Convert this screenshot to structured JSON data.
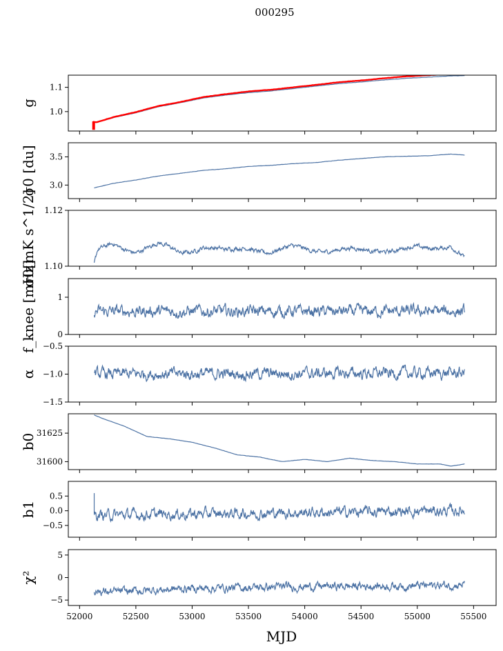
{
  "figure_title": "000295",
  "xlabel": "MJD",
  "xlim": [
    51900,
    55700
  ],
  "xticks": [
    52000,
    52500,
    53000,
    53500,
    54000,
    54500,
    55000,
    55500
  ],
  "colors": {
    "line": "#4c72a4",
    "highlight": "#ff0000",
    "axes": "#000000"
  },
  "chart_data": [
    {
      "type": "line",
      "ylabel": "g",
      "ylim": [
        0.92,
        1.15
      ],
      "yticks": [
        1.0,
        1.1
      ],
      "yticklabels": [
        "1.0",
        "1.1"
      ],
      "series": [
        {
          "style": "smooth",
          "x": [
            52120,
            52150,
            52300,
            52500,
            52700,
            52900,
            53100,
            53300,
            53500,
            53700,
            53900,
            54100,
            54300,
            54500,
            54700,
            54900,
            55100,
            55300,
            55420
          ],
          "values": [
            0.958,
            0.955,
            0.975,
            0.995,
            1.02,
            1.037,
            1.056,
            1.068,
            1.078,
            1.085,
            1.095,
            1.105,
            1.115,
            1.122,
            1.13,
            1.137,
            1.142,
            1.147,
            1.148
          ]
        },
        {
          "style": "smooth",
          "highlight": true,
          "x": [
            52120,
            52150,
            52300,
            52500,
            52700,
            52900,
            53100,
            53300,
            53500,
            53700,
            53900,
            54100,
            54300,
            54500,
            54700,
            54900,
            55100,
            55300,
            55420
          ],
          "values": [
            0.958,
            0.956,
            0.977,
            0.998,
            1.023,
            1.04,
            1.06,
            1.072,
            1.083,
            1.09,
            1.1,
            1.11,
            1.121,
            1.128,
            1.137,
            1.145,
            1.15,
            1.155,
            1.152
          ]
        }
      ],
      "spike": {
        "x": 52125,
        "values": [
          0.925,
          0.96
        ]
      }
    },
    {
      "type": "line",
      "ylabel": "σ0 [du]",
      "ylim": [
        2.76,
        3.75
      ],
      "yticks": [
        3.0,
        3.5
      ],
      "yticklabels": [
        "3.0",
        "3.5"
      ],
      "series": [
        {
          "style": "smooth",
          "x": [
            52130,
            52300,
            52500,
            52700,
            52900,
            53100,
            53300,
            53500,
            53700,
            53900,
            54100,
            54300,
            54500,
            54700,
            54900,
            55100,
            55300,
            55420
          ],
          "values": [
            2.95,
            3.03,
            3.09,
            3.16,
            3.21,
            3.26,
            3.29,
            3.33,
            3.35,
            3.38,
            3.4,
            3.44,
            3.47,
            3.5,
            3.51,
            3.52,
            3.55,
            3.53
          ]
        }
      ]
    },
    {
      "type": "line",
      "ylabel": "σ0[mK s^1/2]",
      "ylim": [
        1.1,
        1.12
      ],
      "yticks": [
        1.1,
        1.12
      ],
      "yticklabels": [
        "1.10",
        "1.12"
      ],
      "series": [
        {
          "style": "noisy",
          "base": 1.1045,
          "amp": 0.0009,
          "noise": 0.0006,
          "x": [
            52130,
            52160,
            52300,
            52500,
            52700,
            52900,
            53100,
            53300,
            53500,
            53700,
            53900,
            54100,
            54300,
            54500,
            54700,
            54900,
            55100,
            55300,
            55420
          ],
          "values": [
            1.1,
            1.105,
            1.108,
            1.1055,
            1.1075,
            1.105,
            1.1072,
            1.105,
            1.107,
            1.105,
            1.1065,
            1.106,
            1.1058,
            1.1055,
            1.106,
            1.1062,
            1.106,
            1.108,
            1.103
          ]
        }
      ]
    },
    {
      "type": "line",
      "ylabel": "f_knee [mHz]",
      "ylim": [
        0,
        1.5
      ],
      "yticks": [
        0,
        1
      ],
      "yticklabels": [
        "0",
        "1"
      ],
      "series": [
        {
          "style": "noisy",
          "base": 0.62,
          "amp": 0.0,
          "noise": 0.12,
          "x": [
            52130,
            55420
          ],
          "values": [
            0.62,
            0.62
          ]
        }
      ]
    },
    {
      "type": "line",
      "ylabel": "α",
      "ylim": [
        -1.5,
        -0.5
      ],
      "yticks": [
        -1.5,
        -1.0,
        -0.5
      ],
      "yticklabels": [
        "−1.5",
        "−1.0",
        "−0.5"
      ],
      "series": [
        {
          "style": "noisy",
          "base": -1.0,
          "amp": 0.0,
          "noise": 0.08,
          "x": [
            52130,
            55420
          ],
          "values": [
            -1.0,
            -0.98
          ]
        }
      ]
    },
    {
      "type": "line",
      "ylabel": "b0",
      "ylim": [
        31593,
        31642
      ],
      "yticks": [
        31600,
        31625
      ],
      "yticklabels": [
        "31600",
        "31625"
      ],
      "series": [
        {
          "style": "smooth",
          "x": [
            52130,
            52200,
            52400,
            52600,
            52800,
            53000,
            53200,
            53400,
            53600,
            53800,
            54000,
            54200,
            54400,
            54600,
            54800,
            55000,
            55200,
            55300,
            55420
          ],
          "values": [
            31641,
            31638,
            31631,
            31622,
            31620,
            31617,
            31612,
            31606,
            31604,
            31600,
            31602,
            31600,
            31603,
            31601,
            31600,
            31598,
            31598,
            31596,
            31598
          ]
        }
      ]
    },
    {
      "type": "line",
      "ylabel": "b1",
      "ylim": [
        -0.9,
        1.0
      ],
      "yticks": [
        -0.5,
        0.0,
        0.5
      ],
      "yticklabels": [
        "−0.5",
        "0.0",
        "0.5"
      ],
      "series": [
        {
          "style": "noisy",
          "base": -0.05,
          "amp": 0.0,
          "noise": 0.14,
          "x": [
            52130,
            55420
          ],
          "values": [
            -0.15,
            0.0
          ]
        }
      ],
      "start_spike": [
        0.6,
        -0.1
      ]
    },
    {
      "type": "line",
      "ylabel": "χ²",
      "ylim": [
        -6.2,
        6.2
      ],
      "yticks": [
        -5,
        0,
        5
      ],
      "yticklabels": [
        "−5",
        "0",
        "5"
      ],
      "series": [
        {
          "style": "noisy",
          "base": -2.2,
          "amp": 0.0,
          "noise": 0.7,
          "x": [
            52130,
            52300,
            53000,
            54000,
            55000,
            55420
          ],
          "values": [
            -3.0,
            -3.2,
            -2.4,
            -2.0,
            -1.8,
            -1.6
          ]
        }
      ]
    }
  ]
}
